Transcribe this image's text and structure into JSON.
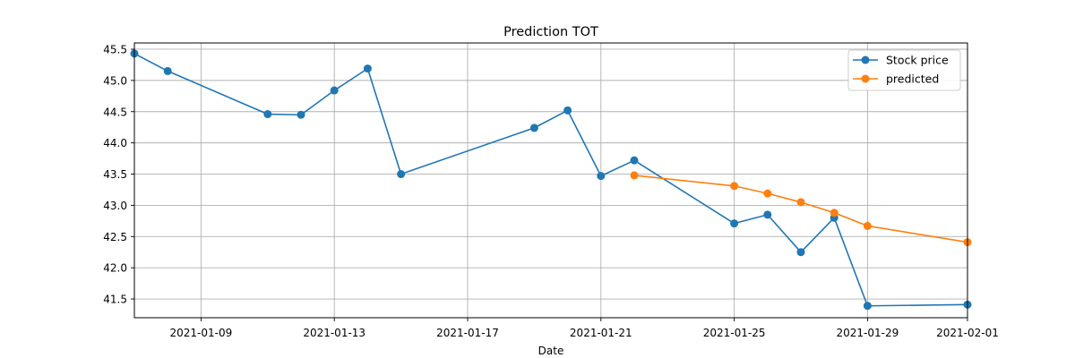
{
  "chart_data": {
    "type": "line",
    "title": "Prediction TOT",
    "xlabel": "Date",
    "ylabel": "",
    "x_type": "date",
    "xlim": [
      "2021-01-07",
      "2021-02-01"
    ],
    "ylim": [
      41.2,
      45.6
    ],
    "x_ticks": [
      "2021-01-09",
      "2021-01-13",
      "2021-01-17",
      "2021-01-21",
      "2021-01-25",
      "2021-01-29",
      "2021-02-01"
    ],
    "y_ticks": [
      "41.5",
      "42.0",
      "42.5",
      "43.0",
      "43.5",
      "44.0",
      "44.5",
      "45.0",
      "45.5"
    ],
    "grid": true,
    "legend_position": "top-right",
    "series": [
      {
        "name": "Stock price",
        "color": "#1f77b4",
        "marker": "circle",
        "points": [
          {
            "x": "2021-01-07",
            "y": 45.43
          },
          {
            "x": "2021-01-08",
            "y": 45.15
          },
          {
            "x": "2021-01-11",
            "y": 44.46
          },
          {
            "x": "2021-01-12",
            "y": 44.45
          },
          {
            "x": "2021-01-13",
            "y": 44.84
          },
          {
            "x": "2021-01-14",
            "y": 45.19
          },
          {
            "x": "2021-01-15",
            "y": 43.5
          },
          {
            "x": "2021-01-19",
            "y": 44.24
          },
          {
            "x": "2021-01-20",
            "y": 44.52
          },
          {
            "x": "2021-01-21",
            "y": 43.47
          },
          {
            "x": "2021-01-22",
            "y": 43.72
          },
          {
            "x": "2021-01-25",
            "y": 42.71
          },
          {
            "x": "2021-01-26",
            "y": 42.85
          },
          {
            "x": "2021-01-27",
            "y": 42.25
          },
          {
            "x": "2021-01-28",
            "y": 42.8
          },
          {
            "x": "2021-01-29",
            "y": 41.39
          },
          {
            "x": "2021-02-01",
            "y": 41.41
          }
        ]
      },
      {
        "name": "predicted",
        "color": "#ff7f0e",
        "marker": "circle",
        "points": [
          {
            "x": "2021-01-22",
            "y": 43.48
          },
          {
            "x": "2021-01-25",
            "y": 43.31
          },
          {
            "x": "2021-01-26",
            "y": 43.19
          },
          {
            "x": "2021-01-27",
            "y": 43.05
          },
          {
            "x": "2021-01-28",
            "y": 42.88
          },
          {
            "x": "2021-01-29",
            "y": 42.67
          },
          {
            "x": "2021-02-01",
            "y": 42.41
          }
        ]
      }
    ]
  }
}
